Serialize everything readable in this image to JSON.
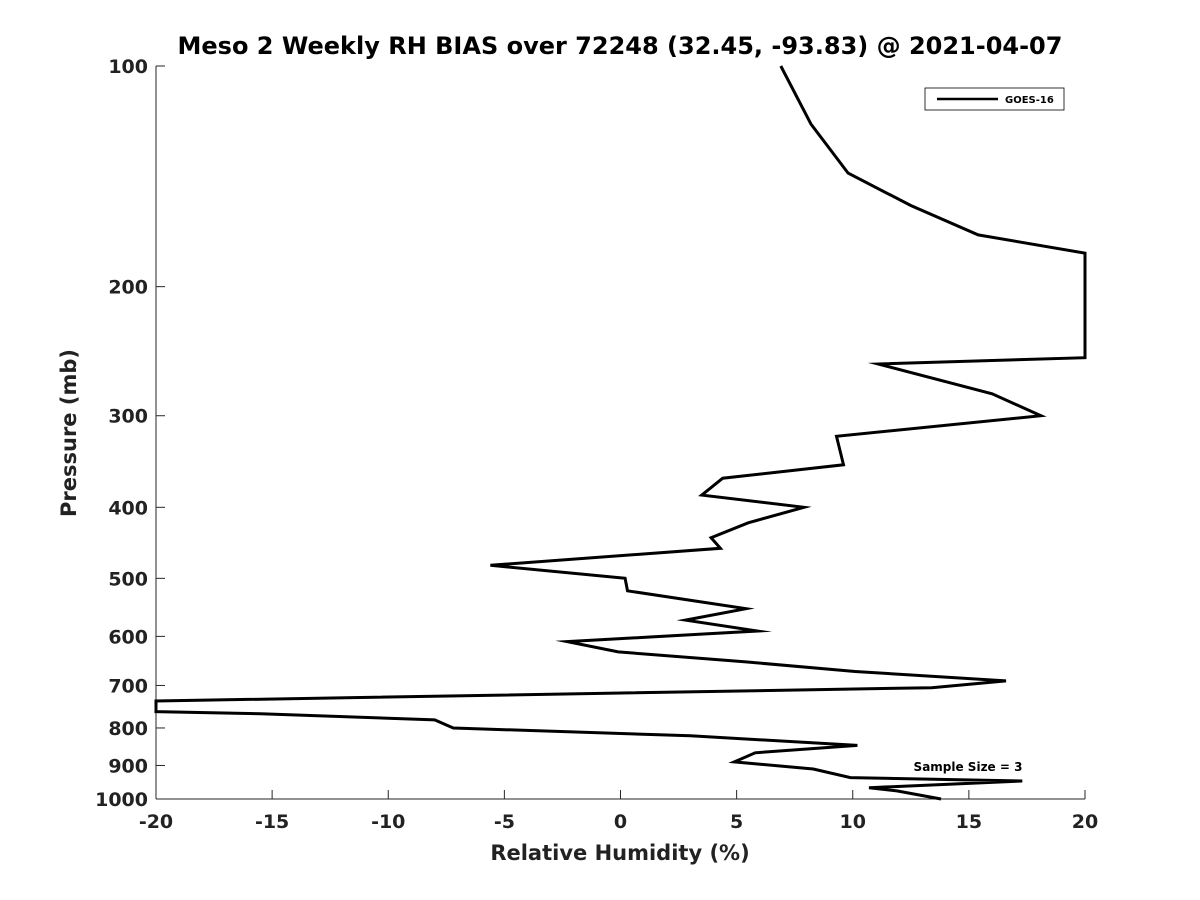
{
  "chart_data": {
    "type": "line",
    "title": "Meso 2 Weekly RH BIAS over 72248 (32.45, -93.83) @ 2021-04-07",
    "xlabel": "Relative Humidity (%)",
    "ylabel": "Pressure (mb)",
    "xlim": [
      -20,
      20
    ],
    "ylim": [
      100,
      1000
    ],
    "y_scale": "log",
    "y_reversed": true,
    "grid": false,
    "legend_position": "top-right",
    "x_ticks": [
      -20,
      -15,
      -10,
      -5,
      0,
      5,
      10,
      15,
      20
    ],
    "x_tick_labels": [
      "-20",
      "-15",
      "-10",
      "-5",
      "0",
      "5",
      "10",
      "15",
      "20"
    ],
    "y_ticks": [
      100,
      200,
      300,
      400,
      500,
      600,
      700,
      800,
      900,
      1000
    ],
    "y_tick_labels": [
      "100",
      "200",
      "300",
      "400",
      "500",
      "600",
      "700",
      "800",
      "900",
      "1000"
    ],
    "annotation": "Sample Size = 3",
    "series": [
      {
        "name": "GOES-16",
        "color": "#000000",
        "points": [
          {
            "x": 6.9,
            "y": 100
          },
          {
            "x": 8.2,
            "y": 120
          },
          {
            "x": 9.8,
            "y": 140
          },
          {
            "x": 12.5,
            "y": 155
          },
          {
            "x": 15.4,
            "y": 170
          },
          {
            "x": 20.0,
            "y": 180
          },
          {
            "x": 20.0,
            "y": 250
          },
          {
            "x": 11.1,
            "y": 255
          },
          {
            "x": 16.0,
            "y": 280
          },
          {
            "x": 18.1,
            "y": 300
          },
          {
            "x": 9.3,
            "y": 320
          },
          {
            "x": 9.6,
            "y": 350
          },
          {
            "x": 4.4,
            "y": 365
          },
          {
            "x": 3.5,
            "y": 385
          },
          {
            "x": 7.9,
            "y": 400
          },
          {
            "x": 5.5,
            "y": 420
          },
          {
            "x": 3.9,
            "y": 440
          },
          {
            "x": 4.3,
            "y": 455
          },
          {
            "x": -5.6,
            "y": 480
          },
          {
            "x": 0.2,
            "y": 500
          },
          {
            "x": 0.3,
            "y": 520
          },
          {
            "x": 5.4,
            "y": 550
          },
          {
            "x": 2.8,
            "y": 570
          },
          {
            "x": 5.9,
            "y": 590
          },
          {
            "x": -2.3,
            "y": 610
          },
          {
            "x": -0.1,
            "y": 630
          },
          {
            "x": 5.4,
            "y": 650
          },
          {
            "x": 10.1,
            "y": 670
          },
          {
            "x": 16.6,
            "y": 690
          },
          {
            "x": 13.4,
            "y": 705
          },
          {
            "x": -20.0,
            "y": 735
          },
          {
            "x": -20.0,
            "y": 760
          },
          {
            "x": -15.5,
            "y": 765
          },
          {
            "x": -8.0,
            "y": 780
          },
          {
            "x": -7.2,
            "y": 800
          },
          {
            "x": 3.0,
            "y": 820
          },
          {
            "x": 10.2,
            "y": 845
          },
          {
            "x": 5.8,
            "y": 865
          },
          {
            "x": 4.9,
            "y": 890
          },
          {
            "x": 8.3,
            "y": 910
          },
          {
            "x": 9.9,
            "y": 935
          },
          {
            "x": 17.3,
            "y": 945
          },
          {
            "x": 10.7,
            "y": 965
          },
          {
            "x": 11.9,
            "y": 975
          },
          {
            "x": 13.8,
            "y": 1000
          }
        ]
      }
    ]
  }
}
